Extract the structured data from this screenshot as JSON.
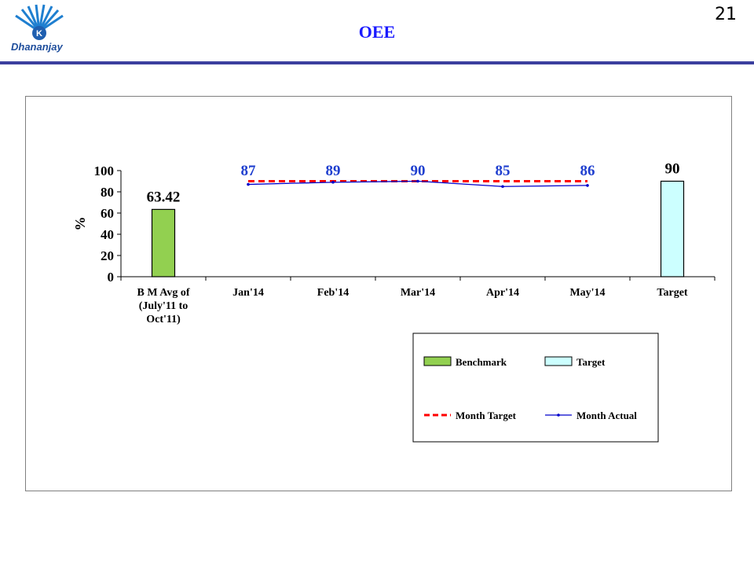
{
  "slide": {
    "title": "OEE",
    "page_number": "21",
    "logo_text": "Dhananjay",
    "accent_color": "#3b3f9e"
  },
  "chart_data": {
    "type": "bar",
    "title": "",
    "xlabel": "",
    "ylabel": "%",
    "ylim": [
      0,
      100
    ],
    "yticks": [
      0,
      20,
      40,
      60,
      80,
      100
    ],
    "grid": false,
    "categories": [
      [
        "B M Avg of",
        "(July'11 to",
        "Oct'11)"
      ],
      [
        "Jan'14"
      ],
      [
        "Feb'14"
      ],
      [
        "Mar'14"
      ],
      [
        "Apr'14"
      ],
      [
        "May'14"
      ],
      [
        "Target"
      ]
    ],
    "legend_position": "bottom-right",
    "series": [
      {
        "name": "Benchmark",
        "kind": "bar",
        "color": "#92d050",
        "values": [
          63.42,
          null,
          null,
          null,
          null,
          null,
          null
        ],
        "labels": [
          "63.42",
          null,
          null,
          null,
          null,
          null,
          null
        ],
        "label_color": "#000000"
      },
      {
        "name": "Target",
        "kind": "bar",
        "color": "#ccffff",
        "values": [
          null,
          null,
          null,
          null,
          null,
          null,
          90
        ],
        "labels": [
          null,
          null,
          null,
          null,
          null,
          null,
          "90"
        ],
        "label_color": "#000000"
      },
      {
        "name": "Month Target",
        "kind": "line",
        "style": "dashed",
        "color": "#ff0000",
        "values": [
          null,
          90,
          90,
          90,
          90,
          90,
          null
        ]
      },
      {
        "name": "Month Actual",
        "kind": "line",
        "style": "solid-marker",
        "color": "#0000cc",
        "values": [
          null,
          87,
          89,
          90,
          85,
          86,
          null
        ],
        "labels": [
          null,
          "87",
          "89",
          "90",
          "85",
          "86",
          null
        ],
        "label_color": "#1f3fcf"
      }
    ]
  }
}
